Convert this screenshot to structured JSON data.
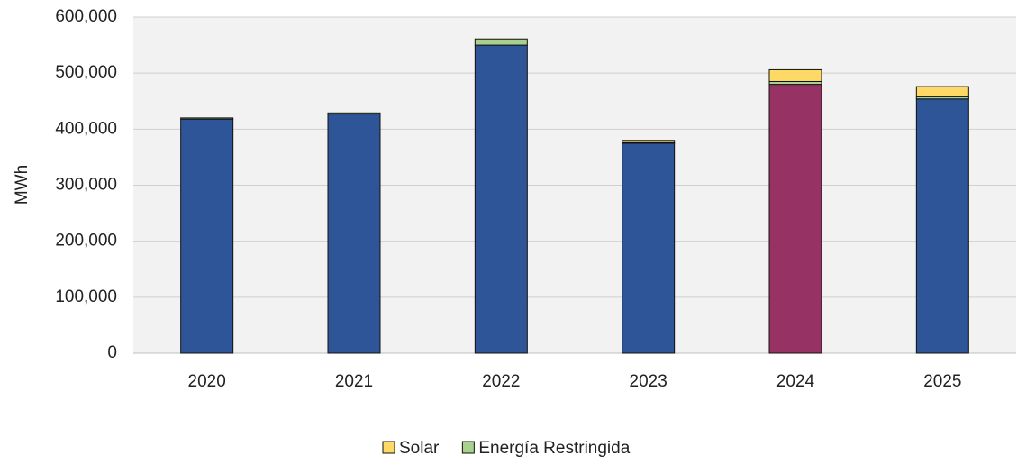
{
  "chart_data": {
    "type": "stacked_bar",
    "y_label": "MWh",
    "categories": [
      "2020",
      "2021",
      "2022",
      "2023",
      "2024",
      "2025"
    ],
    "series": [
      {
        "colors": [
          "#2e5597",
          "#2e5597",
          "#2e5597",
          "#2e5597",
          "#963264",
          "#2e5597"
        ],
        "values": [
          418000,
          427000,
          550000,
          375000,
          480000,
          454000
        ]
      },
      {
        "name": "Energía Restringida",
        "color": "#a9d18e",
        "values": [
          2000,
          2000,
          11000,
          1000,
          5000,
          4000
        ]
      },
      {
        "name": "Solar",
        "color": "#ffd966",
        "values": [
          0,
          0,
          0,
          4000,
          21000,
          18000
        ]
      }
    ],
    "ylim": [
      0,
      600000
    ],
    "yticks": [
      0,
      {
        "value": 100000,
        "label": "100,000"
      },
      {
        "value": 200000,
        "label": "200,000"
      },
      {
        "value": 300000,
        "label": "300,000"
      },
      {
        "value": 400000,
        "label": "400,000"
      },
      {
        "value": 500000,
        "label": "500,000"
      },
      {
        "value": 600000,
        "label": "600,000"
      }
    ],
    "grid": true,
    "legend": "bottom"
  }
}
